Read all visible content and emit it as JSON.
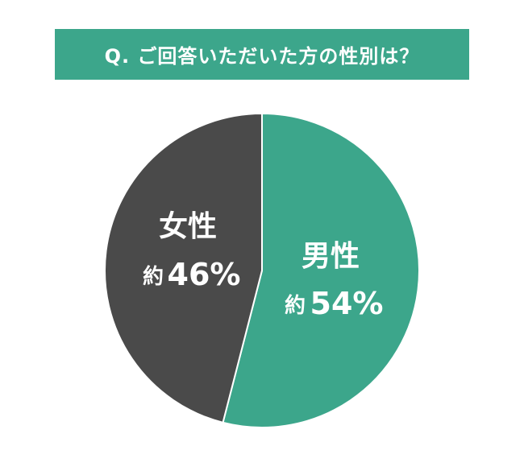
{
  "chart_data": {
    "type": "pie",
    "title": "Q. ご回答いただいた方の性別は？",
    "start": "top",
    "direction": "clockwise",
    "slices": [
      {
        "label": "男性",
        "value": 54,
        "value_label": "約",
        "percent_text": "54%",
        "color": "#3ca68b"
      },
      {
        "label": "女性",
        "value": 46,
        "value_label": "約",
        "percent_text": "46%",
        "color": "#4a4a4a"
      }
    ],
    "slice_border_color": "#ffffff"
  }
}
